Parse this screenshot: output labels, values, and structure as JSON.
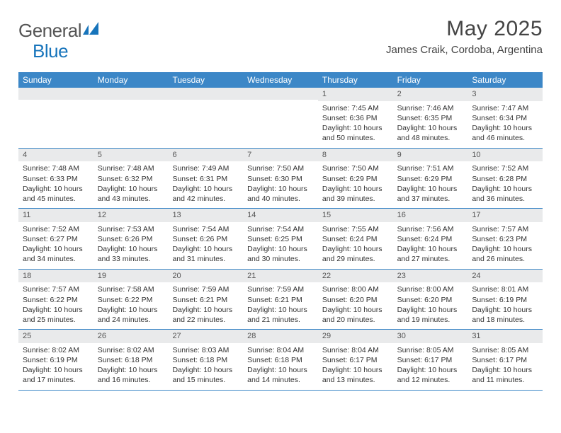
{
  "logo": {
    "word1": "General",
    "word2": "Blue"
  },
  "title": "May 2025",
  "location": "James Craik, Cordoba, Argentina",
  "colors": {
    "header_bar": "#3c87c7",
    "daynum_bg": "#e9eaeb",
    "row_border": "#3c87c7",
    "text": "#333333",
    "logo_gray": "#555555",
    "logo_blue": "#1774bb",
    "background": "#ffffff"
  },
  "dow": [
    "Sunday",
    "Monday",
    "Tuesday",
    "Wednesday",
    "Thursday",
    "Friday",
    "Saturday"
  ],
  "weeks": [
    [
      {
        "num": "",
        "sunrise": "",
        "sunset": "",
        "daylight": ""
      },
      {
        "num": "",
        "sunrise": "",
        "sunset": "",
        "daylight": ""
      },
      {
        "num": "",
        "sunrise": "",
        "sunset": "",
        "daylight": ""
      },
      {
        "num": "",
        "sunrise": "",
        "sunset": "",
        "daylight": ""
      },
      {
        "num": "1",
        "sunrise": "Sunrise: 7:45 AM",
        "sunset": "Sunset: 6:36 PM",
        "daylight": "Daylight: 10 hours and 50 minutes."
      },
      {
        "num": "2",
        "sunrise": "Sunrise: 7:46 AM",
        "sunset": "Sunset: 6:35 PM",
        "daylight": "Daylight: 10 hours and 48 minutes."
      },
      {
        "num": "3",
        "sunrise": "Sunrise: 7:47 AM",
        "sunset": "Sunset: 6:34 PM",
        "daylight": "Daylight: 10 hours and 46 minutes."
      }
    ],
    [
      {
        "num": "4",
        "sunrise": "Sunrise: 7:48 AM",
        "sunset": "Sunset: 6:33 PM",
        "daylight": "Daylight: 10 hours and 45 minutes."
      },
      {
        "num": "5",
        "sunrise": "Sunrise: 7:48 AM",
        "sunset": "Sunset: 6:32 PM",
        "daylight": "Daylight: 10 hours and 43 minutes."
      },
      {
        "num": "6",
        "sunrise": "Sunrise: 7:49 AM",
        "sunset": "Sunset: 6:31 PM",
        "daylight": "Daylight: 10 hours and 42 minutes."
      },
      {
        "num": "7",
        "sunrise": "Sunrise: 7:50 AM",
        "sunset": "Sunset: 6:30 PM",
        "daylight": "Daylight: 10 hours and 40 minutes."
      },
      {
        "num": "8",
        "sunrise": "Sunrise: 7:50 AM",
        "sunset": "Sunset: 6:29 PM",
        "daylight": "Daylight: 10 hours and 39 minutes."
      },
      {
        "num": "9",
        "sunrise": "Sunrise: 7:51 AM",
        "sunset": "Sunset: 6:29 PM",
        "daylight": "Daylight: 10 hours and 37 minutes."
      },
      {
        "num": "10",
        "sunrise": "Sunrise: 7:52 AM",
        "sunset": "Sunset: 6:28 PM",
        "daylight": "Daylight: 10 hours and 36 minutes."
      }
    ],
    [
      {
        "num": "11",
        "sunrise": "Sunrise: 7:52 AM",
        "sunset": "Sunset: 6:27 PM",
        "daylight": "Daylight: 10 hours and 34 minutes."
      },
      {
        "num": "12",
        "sunrise": "Sunrise: 7:53 AM",
        "sunset": "Sunset: 6:26 PM",
        "daylight": "Daylight: 10 hours and 33 minutes."
      },
      {
        "num": "13",
        "sunrise": "Sunrise: 7:54 AM",
        "sunset": "Sunset: 6:26 PM",
        "daylight": "Daylight: 10 hours and 31 minutes."
      },
      {
        "num": "14",
        "sunrise": "Sunrise: 7:54 AM",
        "sunset": "Sunset: 6:25 PM",
        "daylight": "Daylight: 10 hours and 30 minutes."
      },
      {
        "num": "15",
        "sunrise": "Sunrise: 7:55 AM",
        "sunset": "Sunset: 6:24 PM",
        "daylight": "Daylight: 10 hours and 29 minutes."
      },
      {
        "num": "16",
        "sunrise": "Sunrise: 7:56 AM",
        "sunset": "Sunset: 6:24 PM",
        "daylight": "Daylight: 10 hours and 27 minutes."
      },
      {
        "num": "17",
        "sunrise": "Sunrise: 7:57 AM",
        "sunset": "Sunset: 6:23 PM",
        "daylight": "Daylight: 10 hours and 26 minutes."
      }
    ],
    [
      {
        "num": "18",
        "sunrise": "Sunrise: 7:57 AM",
        "sunset": "Sunset: 6:22 PM",
        "daylight": "Daylight: 10 hours and 25 minutes."
      },
      {
        "num": "19",
        "sunrise": "Sunrise: 7:58 AM",
        "sunset": "Sunset: 6:22 PM",
        "daylight": "Daylight: 10 hours and 24 minutes."
      },
      {
        "num": "20",
        "sunrise": "Sunrise: 7:59 AM",
        "sunset": "Sunset: 6:21 PM",
        "daylight": "Daylight: 10 hours and 22 minutes."
      },
      {
        "num": "21",
        "sunrise": "Sunrise: 7:59 AM",
        "sunset": "Sunset: 6:21 PM",
        "daylight": "Daylight: 10 hours and 21 minutes."
      },
      {
        "num": "22",
        "sunrise": "Sunrise: 8:00 AM",
        "sunset": "Sunset: 6:20 PM",
        "daylight": "Daylight: 10 hours and 20 minutes."
      },
      {
        "num": "23",
        "sunrise": "Sunrise: 8:00 AM",
        "sunset": "Sunset: 6:20 PM",
        "daylight": "Daylight: 10 hours and 19 minutes."
      },
      {
        "num": "24",
        "sunrise": "Sunrise: 8:01 AM",
        "sunset": "Sunset: 6:19 PM",
        "daylight": "Daylight: 10 hours and 18 minutes."
      }
    ],
    [
      {
        "num": "25",
        "sunrise": "Sunrise: 8:02 AM",
        "sunset": "Sunset: 6:19 PM",
        "daylight": "Daylight: 10 hours and 17 minutes."
      },
      {
        "num": "26",
        "sunrise": "Sunrise: 8:02 AM",
        "sunset": "Sunset: 6:18 PM",
        "daylight": "Daylight: 10 hours and 16 minutes."
      },
      {
        "num": "27",
        "sunrise": "Sunrise: 8:03 AM",
        "sunset": "Sunset: 6:18 PM",
        "daylight": "Daylight: 10 hours and 15 minutes."
      },
      {
        "num": "28",
        "sunrise": "Sunrise: 8:04 AM",
        "sunset": "Sunset: 6:18 PM",
        "daylight": "Daylight: 10 hours and 14 minutes."
      },
      {
        "num": "29",
        "sunrise": "Sunrise: 8:04 AM",
        "sunset": "Sunset: 6:17 PM",
        "daylight": "Daylight: 10 hours and 13 minutes."
      },
      {
        "num": "30",
        "sunrise": "Sunrise: 8:05 AM",
        "sunset": "Sunset: 6:17 PM",
        "daylight": "Daylight: 10 hours and 12 minutes."
      },
      {
        "num": "31",
        "sunrise": "Sunrise: 8:05 AM",
        "sunset": "Sunset: 6:17 PM",
        "daylight": "Daylight: 10 hours and 11 minutes."
      }
    ]
  ]
}
